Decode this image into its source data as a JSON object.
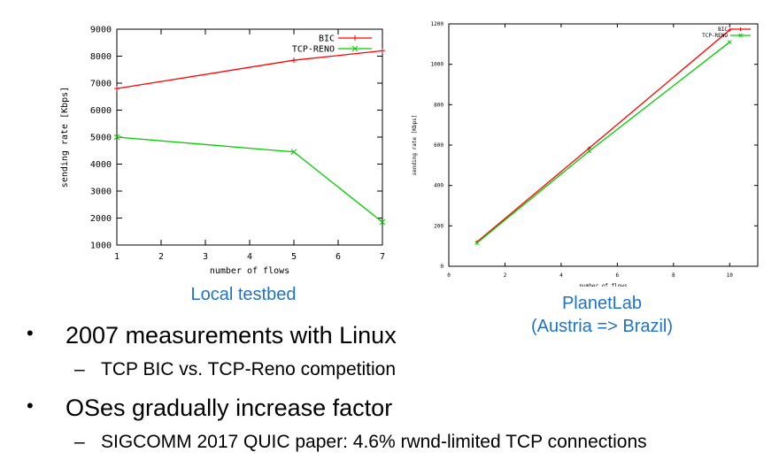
{
  "chart_data": [
    {
      "type": "line",
      "title": "",
      "xlabel": "number of flows",
      "ylabel": "sending rate [Kbps]",
      "xlim": [
        1,
        7
      ],
      "ylim": [
        1000,
        9000
      ],
      "x_ticks": [
        1,
        2,
        3,
        4,
        5,
        6,
        7
      ],
      "y_ticks": [
        1000,
        2000,
        3000,
        4000,
        5000,
        6000,
        7000,
        8000,
        9000
      ],
      "grid": false,
      "legend": "top-right",
      "series": [
        {
          "name": "BIC",
          "color": "#ff0000",
          "marker": "+",
          "x": [
            1,
            5,
            7
          ],
          "values": [
            6800,
            7850,
            8200
          ]
        },
        {
          "name": "TCP-RENO",
          "color": "#00cc00",
          "marker": "x",
          "x": [
            1,
            5,
            7
          ],
          "values": [
            5000,
            4450,
            1850
          ]
        }
      ]
    },
    {
      "type": "line",
      "title": "",
      "xlabel": "number of flows",
      "ylabel": "sending rate [Kbps]",
      "xlim": [
        0,
        11
      ],
      "ylim": [
        0,
        1200
      ],
      "x_ticks": [
        0,
        2,
        4,
        6,
        8,
        10
      ],
      "y_ticks": [
        0,
        200,
        400,
        600,
        800,
        1000,
        1200
      ],
      "grid": false,
      "legend": "top-right",
      "series": [
        {
          "name": "BIC",
          "color": "#ff0000",
          "marker": "+",
          "x": [
            1,
            5,
            10
          ],
          "values": [
            120,
            585,
            1170
          ]
        },
        {
          "name": "TCP-RENO",
          "color": "#00cc00",
          "marker": "x",
          "x": [
            1,
            5,
            10
          ],
          "values": [
            115,
            570,
            1110
          ]
        }
      ]
    }
  ],
  "captions": {
    "left": "Local testbed",
    "right_line1": "PlanetLab",
    "right_line2": "(Austria => Brazil)"
  },
  "bullets": [
    {
      "text": "2007 measurements with Linux",
      "sub": "TCP BIC vs. TCP-Reno competition"
    },
    {
      "text": "OSes gradually increase factor",
      "sub": "SIGCOMM 2017 QUIC paper: 4.6% rwnd-limited TCP connections"
    }
  ],
  "glyphs": {
    "bullet": "•",
    "dash": "–"
  }
}
